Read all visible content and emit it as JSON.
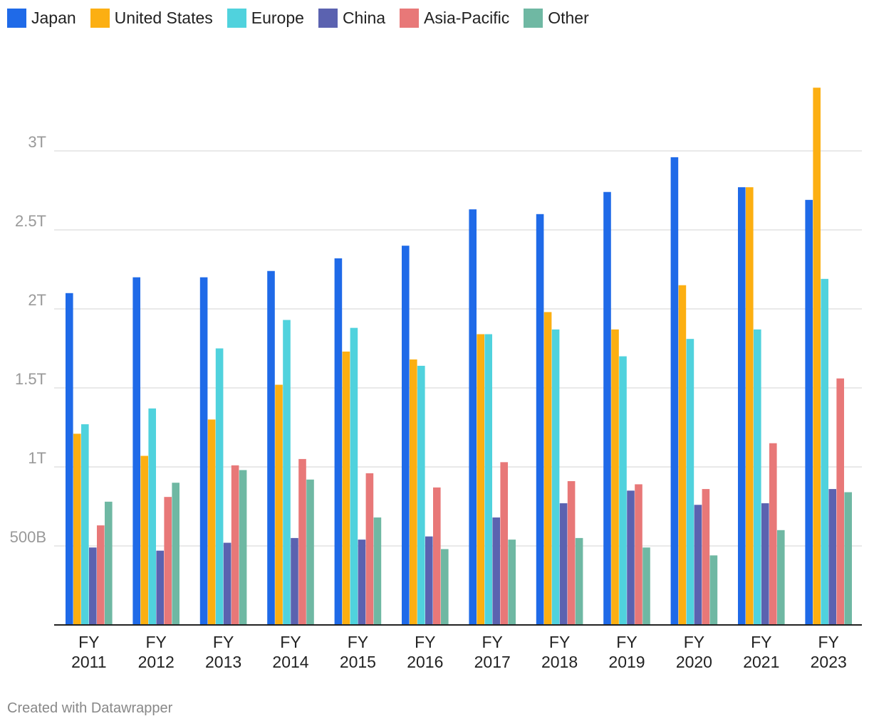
{
  "chart_data": {
    "type": "bar",
    "title": "",
    "xlabel": "",
    "ylabel": "",
    "categories": [
      [
        "FY",
        "2011"
      ],
      [
        "FY",
        "2012"
      ],
      [
        "FY",
        "2013"
      ],
      [
        "FY",
        "2014"
      ],
      [
        "FY",
        "2015"
      ],
      [
        "FY",
        "2016"
      ],
      [
        "FY",
        "2017"
      ],
      [
        "FY",
        "2018"
      ],
      [
        "FY",
        "2019"
      ],
      [
        "FY",
        "2020"
      ],
      [
        "FY",
        "2021"
      ],
      [
        "FY",
        "2023"
      ]
    ],
    "y_ticks": [
      {
        "value": 500000000000,
        "label": "500B"
      },
      {
        "value": 1000000000000,
        "label": "1T"
      },
      {
        "value": 1500000000000,
        "label": "1.5T"
      },
      {
        "value": 2000000000000,
        "label": "2T"
      },
      {
        "value": 2500000000000,
        "label": "2.5T"
      },
      {
        "value": 3000000000000,
        "label": "3T"
      }
    ],
    "ylim": [
      0,
      3400000000000
    ],
    "grid": true,
    "legend_position": "top-left",
    "series": [
      {
        "name": "Japan",
        "color": "#1f6ae8",
        "values": [
          2100000000000.0,
          2200000000000.0,
          2200000000000.0,
          2240000000000.0,
          2320000000000.0,
          2400000000000.0,
          2630000000000.0,
          2600000000000.0,
          2740000000000.0,
          2960000000000.0,
          2770000000000.0,
          2690000000000.0
        ]
      },
      {
        "name": "United States",
        "color": "#fcaf12",
        "values": [
          1210000000000.0,
          1070000000000.0,
          1300000000000.0,
          1520000000000.0,
          1730000000000.0,
          1680000000000.0,
          1840000000000.0,
          1980000000000.0,
          1870000000000.0,
          2150000000000.0,
          2770000000000.0,
          3400000000000.0
        ]
      },
      {
        "name": "Europe",
        "color": "#50d2dd",
        "values": [
          1270000000000.0,
          1370000000000.0,
          1750000000000.0,
          1930000000000.0,
          1880000000000.0,
          1640000000000.0,
          1840000000000.0,
          1870000000000.0,
          1700000000000.0,
          1810000000000.0,
          1870000000000.0,
          2190000000000.0
        ]
      },
      {
        "name": "China",
        "color": "#5b62b0",
        "values": [
          490000000000.0,
          470000000000.0,
          520000000000.0,
          550000000000.0,
          540000000000.0,
          560000000000.0,
          680000000000.0,
          770000000000.0,
          850000000000.0,
          760000000000.0,
          770000000000.0,
          860000000000.0
        ]
      },
      {
        "name": "Asia-Pacific",
        "color": "#e87878",
        "values": [
          630000000000.0,
          810000000000.0,
          1010000000000.0,
          1050000000000.0,
          960000000000.0,
          870000000000.0,
          1030000000000.0,
          910000000000.0,
          890000000000.0,
          860000000000.0,
          1150000000000.0,
          1560000000000.0
        ]
      },
      {
        "name": "Other",
        "color": "#6fb8a3",
        "values": [
          780000000000.0,
          900000000000.0,
          980000000000.0,
          920000000000.0,
          680000000000.0,
          480000000000.0,
          540000000000.0,
          550000000000.0,
          490000000000.0,
          440000000000.0,
          600000000000.0,
          840000000000.0
        ]
      }
    ]
  },
  "footer": {
    "credit": "Created with Datawrapper"
  }
}
